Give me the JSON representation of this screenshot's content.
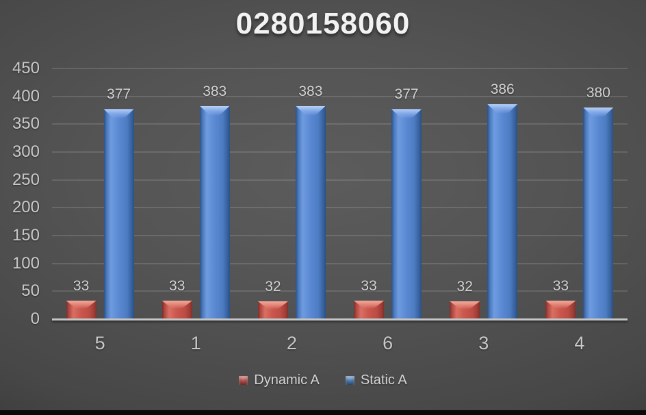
{
  "title": "0280158060",
  "chart_data": {
    "type": "bar",
    "title": "0280158060",
    "categories": [
      "5",
      "1",
      "2",
      "6",
      "3",
      "4"
    ],
    "series": [
      {
        "name": "Dynamic A",
        "color": "#c0504d",
        "values": [
          33,
          33,
          32,
          33,
          32,
          33
        ]
      },
      {
        "name": "Static A",
        "color": "#4f81bd",
        "values": [
          377,
          383,
          383,
          377,
          386,
          380
        ]
      }
    ],
    "ylim": [
      0,
      450
    ],
    "yticks": [
      0,
      50,
      100,
      150,
      200,
      250,
      300,
      350,
      400,
      450
    ],
    "grid": true,
    "legend_position": "bottom",
    "xlabel": "",
    "ylabel": ""
  },
  "colors": {
    "background": "#4a4a4a",
    "bottom_bar": "#0a0a0a",
    "gridline": "#6e6e6e",
    "axis_line": "#c6c6c6",
    "label_text": "#c9c9c9",
    "title_text": "#f2f2f2",
    "dynamic_a": "#c0504d",
    "static_a": "#4f81bd"
  }
}
